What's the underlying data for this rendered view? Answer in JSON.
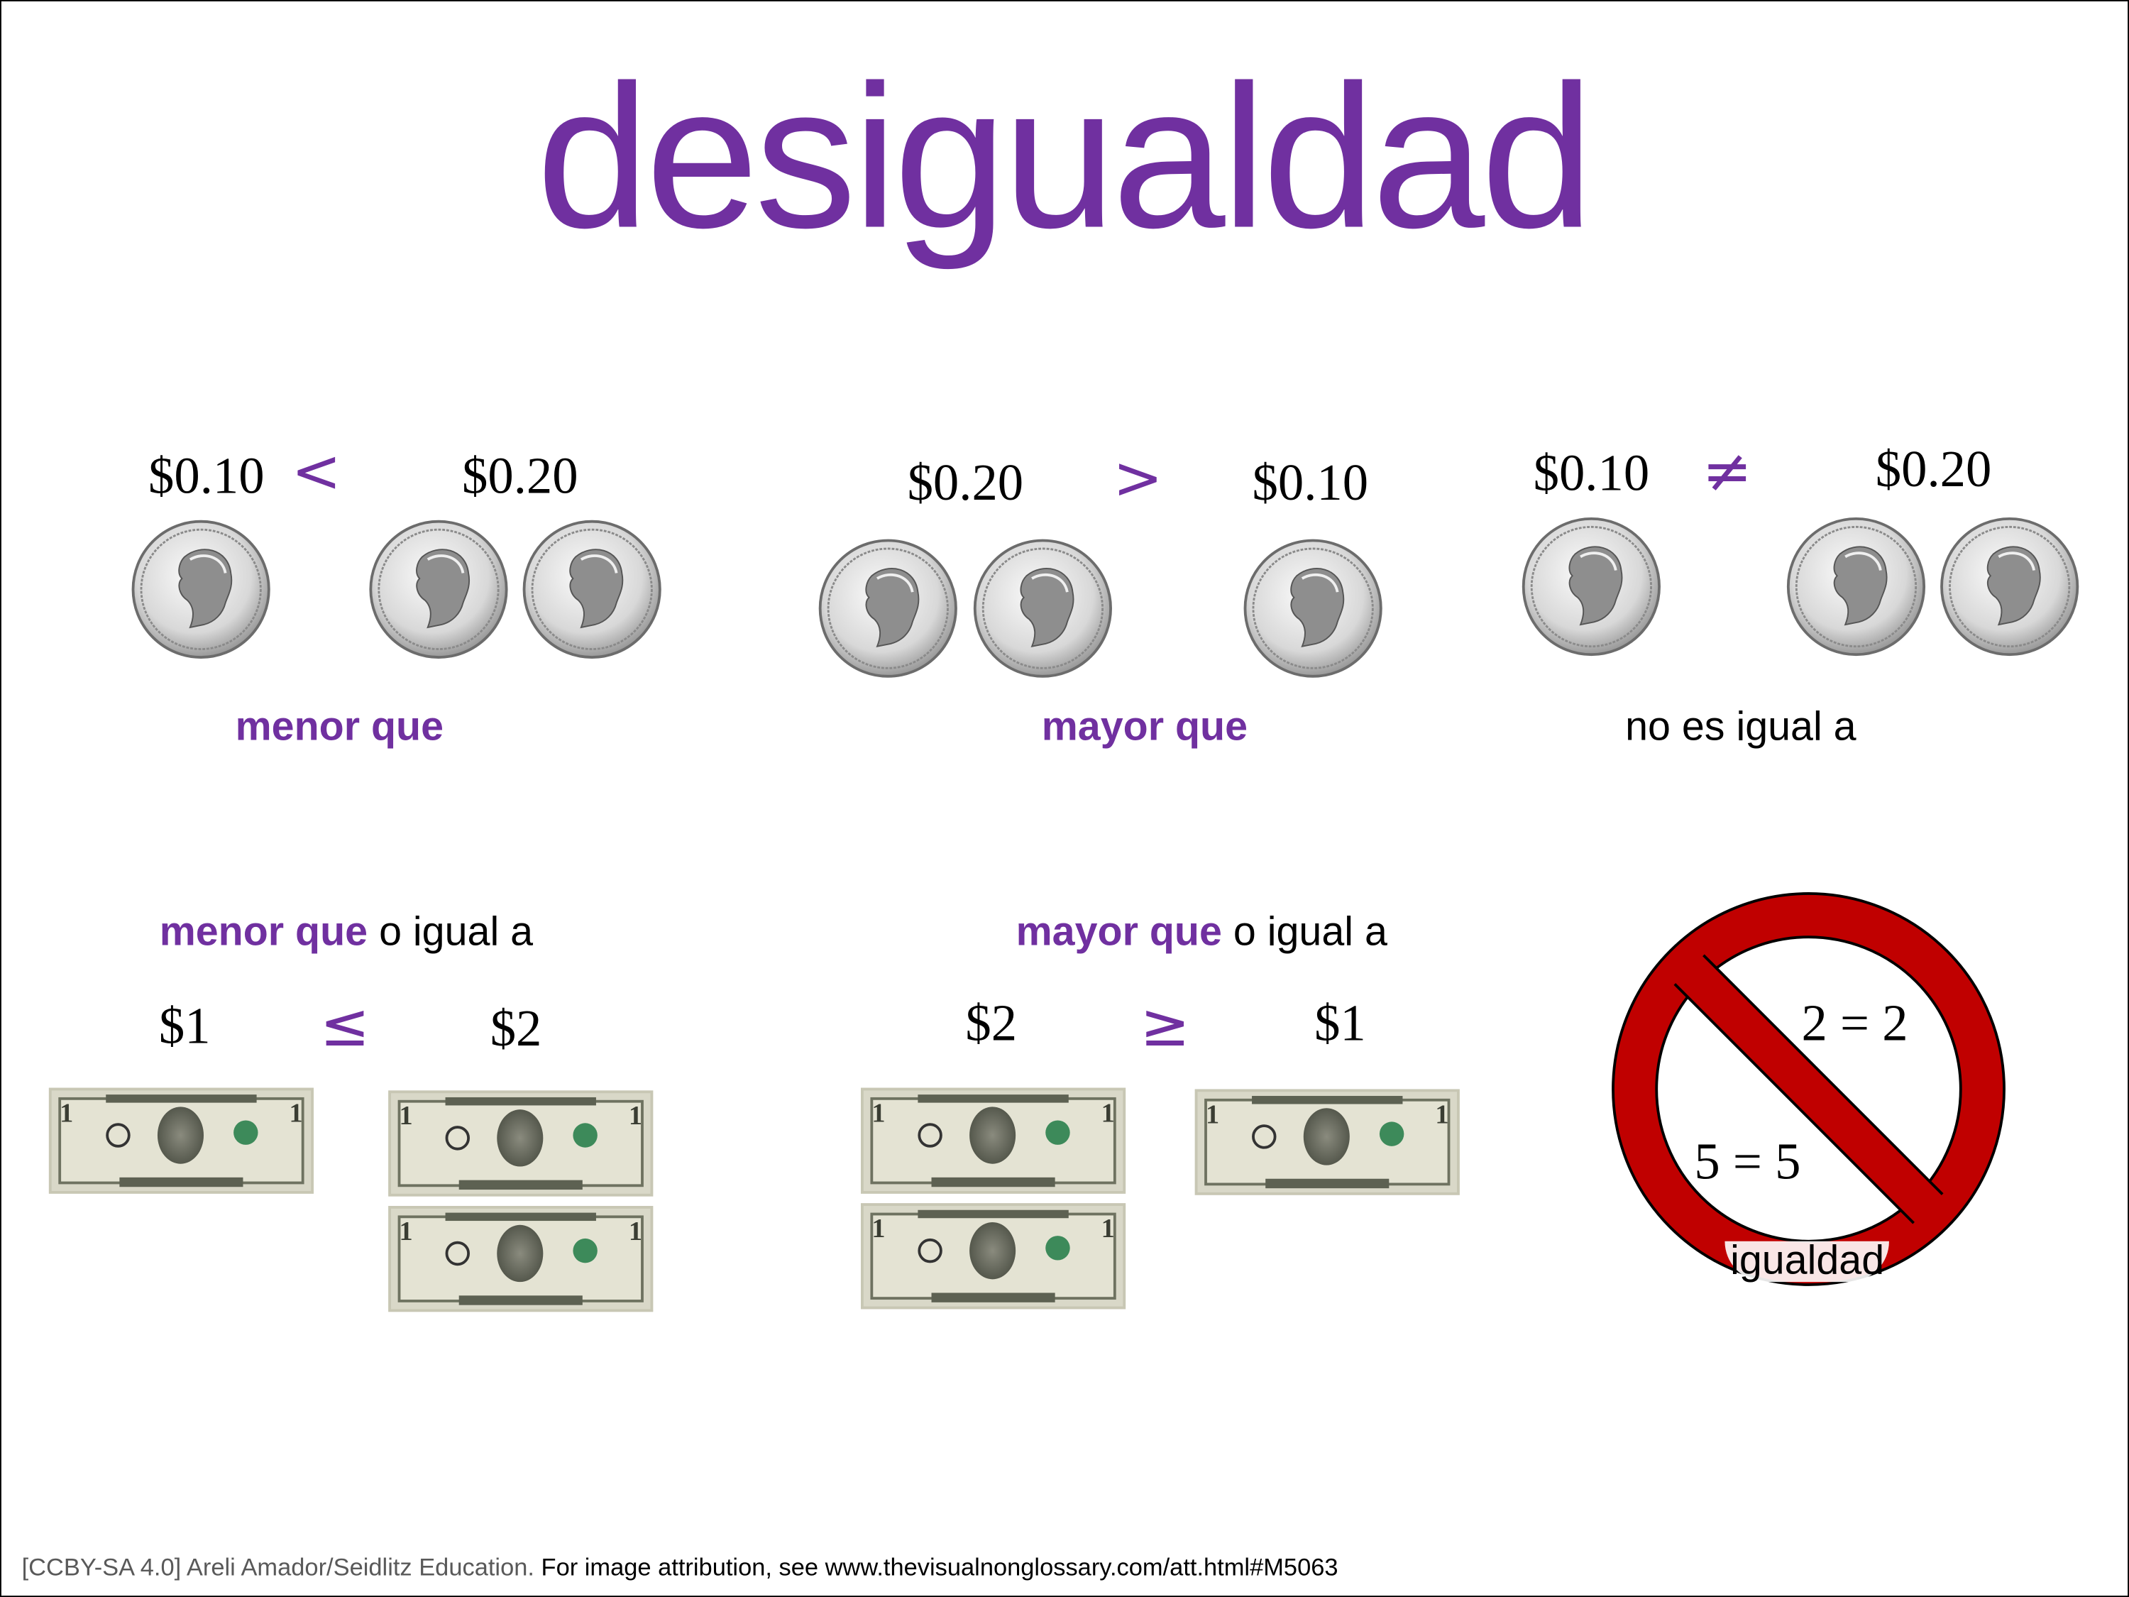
{
  "title": "desigualdad",
  "coin_comparisons": [
    {
      "left": "$0.10",
      "symbol": "<",
      "right": "$0.20",
      "left_coins": 1,
      "right_coins": 2,
      "label": "menor que"
    },
    {
      "left": "$0.20",
      "symbol": ">",
      "right": "$0.10",
      "left_coins": 2,
      "right_coins": 1,
      "label": "mayor que"
    },
    {
      "left": "$0.10",
      "symbol": "≠",
      "right": "$0.20",
      "left_coins": 1,
      "right_coins": 2,
      "label": "no es igual a"
    }
  ],
  "bill_comparisons": [
    {
      "label_bold": "menor que",
      "label_rest": " o igual a",
      "left": "$1",
      "symbol": "≤",
      "right": "$2",
      "left_bills": 1,
      "right_bills": 2
    },
    {
      "label_bold": "mayor que",
      "label_rest": " o igual a",
      "left": "$2",
      "symbol": "≥",
      "right": "$1",
      "left_bills": 2,
      "right_bills": 1
    }
  ],
  "no_equality": {
    "equation_1": "2 = 2",
    "equation_2": "5 = 5",
    "label": "igualdad",
    "ring_color": "#c00000"
  },
  "footer": {
    "credit": "[CCBY-SA 4.0] Areli Amador/Seidlitz Education.",
    "attribution": " For image attribution, see www.thevisualnonglossary.com/att.html#M5063"
  },
  "colors": {
    "accent": "#7030a0",
    "text": "#000000"
  }
}
